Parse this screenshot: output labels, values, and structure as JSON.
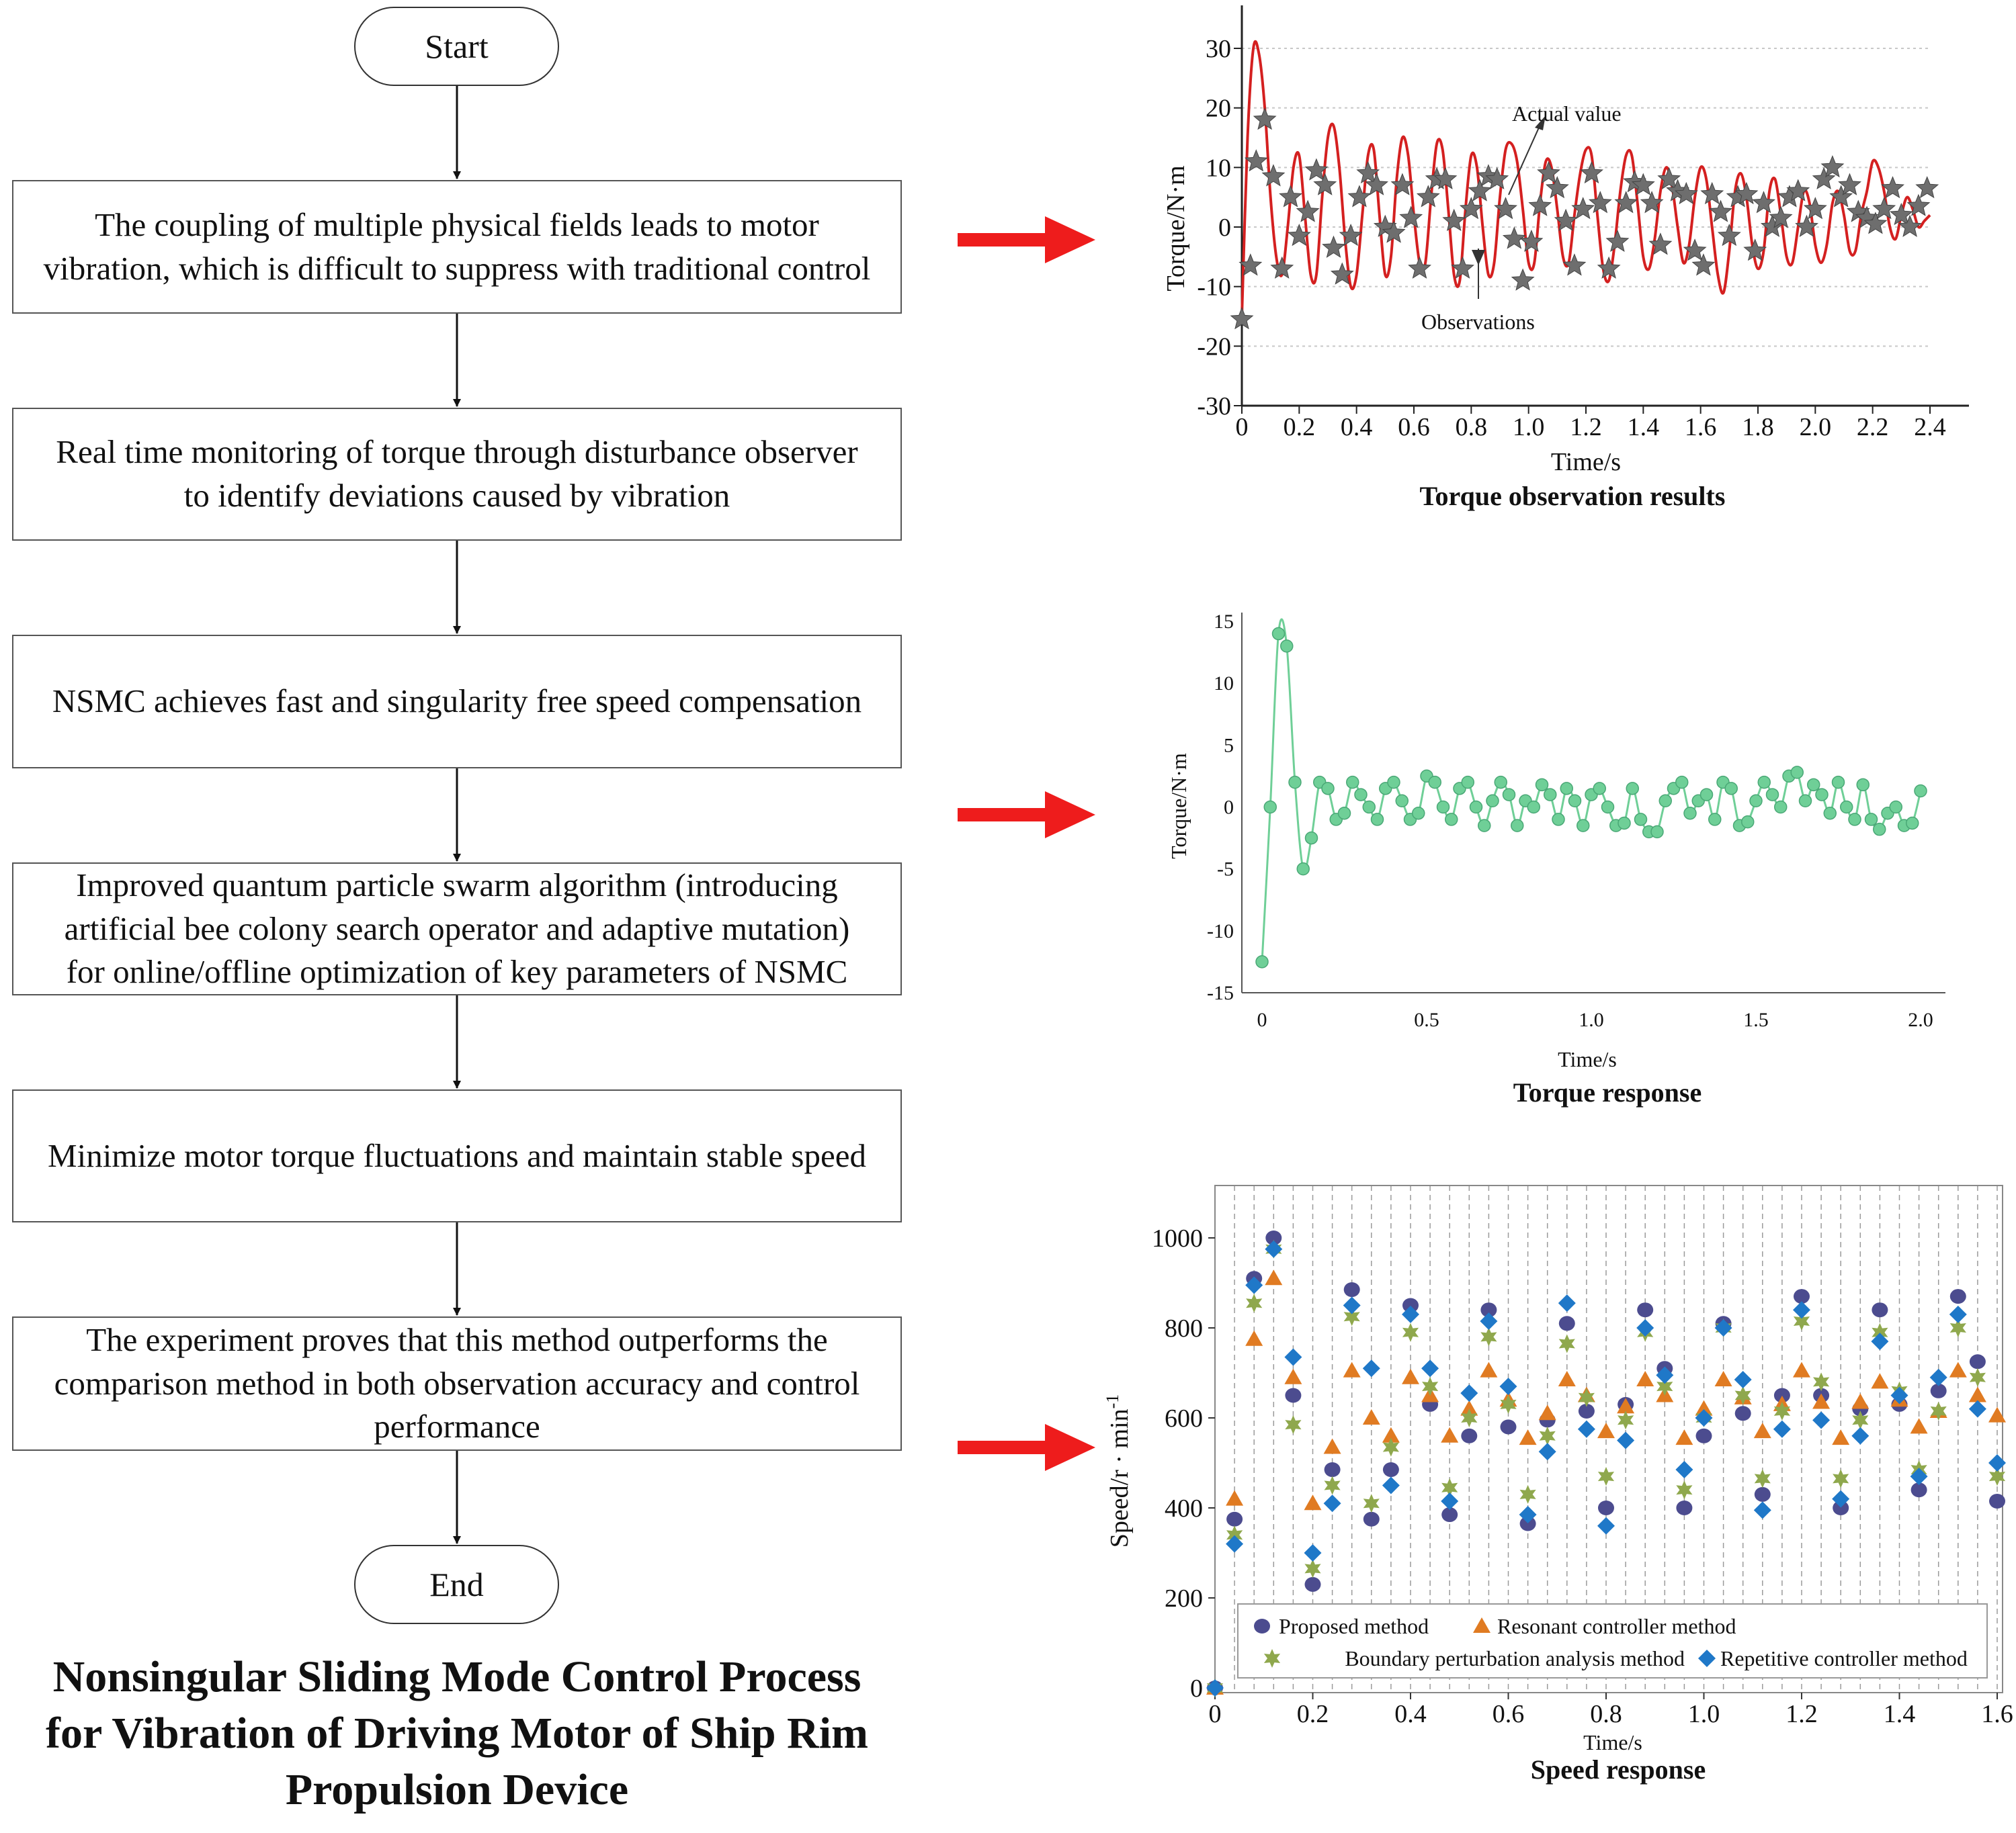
{
  "flowchart": {
    "start": "Start",
    "end": "End",
    "steps": [
      {
        "lines": [
          "The coupling of multiple physical fields leads to motor",
          "vibration, which is difficult to suppress with traditional control"
        ]
      },
      {
        "lines": [
          "Real time monitoring of torque through disturbance observer",
          "to identify deviations caused by vibration"
        ]
      },
      {
        "lines": [
          "NSMC achieves fast and singularity free speed compensation"
        ]
      },
      {
        "lines": [
          "Improved quantum particle swarm algorithm (introducing",
          "artificial bee colony search operator and adaptive mutation)",
          "for online/offline optimization of key parameters of NSMC"
        ]
      },
      {
        "lines": [
          "Minimize motor torque fluctuations and maintain stable speed"
        ]
      },
      {
        "lines": [
          "The experiment proves that this method outperforms the",
          "comparison method in both observation accuracy and control",
          "performance"
        ]
      }
    ],
    "title_lines": [
      "Nonsingular Sliding Mode Control Process",
      "for Vibration of Driving Motor of Ship Rim",
      "Propulsion Device"
    ]
  },
  "colors": {
    "pointer_arrow": "#ee1c1c",
    "actual_line": "#d42020",
    "observation_star": "#6e6e6e",
    "torque_response": "#6fcf97",
    "proposed": "#4c4c8f",
    "resonant": "#e07b22",
    "boundary": "#8fa84d",
    "repetitive": "#1f78c8"
  },
  "chart_data": [
    {
      "type": "line",
      "title": "Torque observation results",
      "xlabel": "Time/s",
      "ylabel": "Torque/N·m",
      "xlim": [
        0,
        2.4
      ],
      "ylim": [
        -30,
        30
      ],
      "x_ticks": [
        "0",
        "0.2",
        "0.4",
        "0.6",
        "0.8",
        "1.0",
        "1.2",
        "1.4",
        "1.6",
        "1.8",
        "2.0",
        "2.2",
        "2.4"
      ],
      "y_ticks": [
        "30",
        "20",
        "10",
        "0",
        "-10",
        "-20",
        "-30"
      ],
      "grid": "horizontal dotted",
      "annotations": [
        "Actual value",
        "Observations"
      ],
      "series": [
        {
          "name": "Actual value",
          "style": "line",
          "x": [
            0,
            0.02,
            0.04,
            0.06,
            0.08,
            0.1,
            0.12,
            0.14,
            0.16,
            0.18,
            0.2,
            0.22,
            0.24,
            0.26,
            0.28,
            0.3,
            0.32,
            0.34,
            0.36,
            0.38,
            0.4,
            0.42,
            0.44,
            0.46,
            0.48,
            0.5,
            0.52,
            0.54,
            0.56,
            0.58,
            0.6,
            0.62,
            0.64,
            0.66,
            0.68,
            0.7,
            0.72,
            0.74,
            0.76,
            0.78,
            0.8,
            0.82,
            0.84,
            0.86,
            0.88,
            0.9,
            0.92,
            0.94,
            0.96,
            0.98,
            1.0,
            1.02,
            1.04,
            1.06,
            1.08,
            1.1,
            1.12,
            1.14,
            1.16,
            1.18,
            1.2,
            1.22,
            1.24,
            1.26,
            1.28,
            1.3,
            1.32,
            1.34,
            1.36,
            1.38,
            1.4,
            1.42,
            1.44,
            1.46,
            1.48,
            1.5,
            1.52,
            1.54,
            1.56,
            1.58,
            1.6,
            1.62,
            1.64,
            1.66,
            1.68,
            1.7,
            1.72,
            1.74,
            1.76,
            1.78,
            1.8,
            1.82,
            1.84,
            1.86,
            1.88,
            1.9,
            1.92,
            1.94,
            1.96,
            1.98,
            2.0,
            2.02,
            2.04,
            2.06,
            2.08,
            2.1,
            2.12,
            2.14,
            2.16,
            2.18,
            2.2,
            2.22,
            2.24,
            2.26,
            2.28,
            2.3,
            2.32,
            2.34,
            2.36,
            2.38,
            2.4
          ],
          "y": [
            -15,
            15,
            30,
            29,
            20,
            5,
            -5,
            -8,
            0,
            10,
            12,
            2,
            -8,
            -8,
            5,
            15,
            17,
            10,
            -2,
            -10,
            -8,
            2,
            12,
            13,
            2,
            -8,
            -5,
            8,
            15,
            12,
            2,
            -6,
            -6,
            5,
            14,
            13,
            3,
            -8,
            -9,
            3,
            12,
            10,
            0,
            -8,
            -6,
            5,
            13,
            14,
            11,
            3,
            -6,
            -6,
            4,
            11,
            10,
            3,
            -5,
            -6,
            2,
            9,
            13,
            12,
            2,
            -7,
            -9,
            -3,
            6,
            12,
            12,
            4,
            -5,
            -7,
            -2,
            6,
            10,
            7,
            0,
            -6,
            -3,
            5,
            10,
            8,
            0,
            -8,
            -11,
            -4,
            6,
            9,
            5,
            -3,
            -7,
            -4,
            6,
            8,
            2,
            -5,
            -6,
            0,
            6,
            4,
            -3,
            -6,
            -3,
            4,
            6,
            2,
            -4,
            -4,
            2,
            6,
            11,
            10,
            6,
            0,
            -2,
            2,
            5,
            3,
            0,
            1,
            2
          ]
        },
        {
          "name": "Observations",
          "style": "star-marker",
          "x": [
            0,
            0.03,
            0.05,
            0.08,
            0.11,
            0.14,
            0.17,
            0.2,
            0.23,
            0.26,
            0.29,
            0.32,
            0.35,
            0.38,
            0.41,
            0.44,
            0.47,
            0.5,
            0.53,
            0.56,
            0.59,
            0.62,
            0.65,
            0.68,
            0.71,
            0.74,
            0.77,
            0.8,
            0.83,
            0.86,
            0.89,
            0.92,
            0.95,
            0.98,
            1.01,
            1.04,
            1.07,
            1.1,
            1.13,
            1.16,
            1.19,
            1.22,
            1.25,
            1.28,
            1.31,
            1.34,
            1.37,
            1.4,
            1.43,
            1.46,
            1.49,
            1.52,
            1.55,
            1.58,
            1.61,
            1.64,
            1.67,
            1.7,
            1.73,
            1.76,
            1.79,
            1.82,
            1.85,
            1.88,
            1.91,
            1.94,
            1.97,
            2.0,
            2.03,
            2.06,
            2.09,
            2.12,
            2.15,
            2.18,
            2.21,
            2.24,
            2.27,
            2.3,
            2.33,
            2.36,
            2.39
          ],
          "y": [
            -15.5,
            -6.5,
            11,
            18,
            8.5,
            -7,
            5,
            -1.5,
            2.5,
            9.5,
            7,
            -3.5,
            -8,
            -1.5,
            5,
            9,
            7,
            0,
            -1,
            7,
            1.5,
            -7,
            5,
            8,
            8,
            1,
            -7,
            3,
            6,
            8.5,
            8,
            3,
            -2,
            -9,
            -2.5,
            3.5,
            9,
            6.5,
            1,
            -6.5,
            3,
            9,
            4,
            -7,
            -2.5,
            4,
            7.5,
            7,
            4,
            -3,
            8,
            6,
            5.5,
            -4,
            -6.5,
            5.5,
            2.5,
            -1.5,
            5,
            5.5,
            -4,
            4,
            0,
            1.5,
            5,
            6,
            0,
            3,
            8,
            10,
            5,
            7,
            2.5,
            1.5,
            0.5,
            3,
            6.5,
            2,
            0,
            3.5,
            6.5
          ]
        }
      ]
    },
    {
      "type": "line",
      "title": "Torque response",
      "xlabel": "Time/s",
      "ylabel": "Torque/N·m",
      "xlim": [
        0,
        2.0
      ],
      "ylim": [
        -15,
        15
      ],
      "x_ticks": [
        "0",
        "0.5",
        "1.0",
        "1.5",
        "2.0"
      ],
      "y_ticks": [
        "15",
        "10",
        "5",
        "0",
        "-5",
        "-10",
        "-15"
      ],
      "series": [
        {
          "name": "",
          "style": "line-with-circles",
          "x": [
            0,
            0.025,
            0.05,
            0.075,
            0.1,
            0.125,
            0.15,
            0.175,
            0.2,
            0.225,
            0.25,
            0.275,
            0.3,
            0.325,
            0.35,
            0.375,
            0.4,
            0.425,
            0.45,
            0.475,
            0.5,
            0.525,
            0.55,
            0.575,
            0.6,
            0.625,
            0.65,
            0.675,
            0.7,
            0.725,
            0.75,
            0.775,
            0.8,
            0.825,
            0.85,
            0.875,
            0.9,
            0.925,
            0.95,
            0.975,
            1.0,
            1.025,
            1.05,
            1.075,
            1.1,
            1.125,
            1.15,
            1.175,
            1.2,
            1.225,
            1.25,
            1.275,
            1.3,
            1.325,
            1.35,
            1.375,
            1.4,
            1.425,
            1.45,
            1.475,
            1.5,
            1.525,
            1.55,
            1.575,
            1.6,
            1.625,
            1.65,
            1.675,
            1.7,
            1.725,
            1.75,
            1.775,
            1.8,
            1.825,
            1.85,
            1.875,
            1.9,
            1.925,
            1.95,
            1.975,
            2.0
          ],
          "y": [
            -12.5,
            0,
            14,
            13,
            2,
            -5,
            -2.5,
            2,
            1.5,
            -1,
            -0.5,
            2,
            1,
            0,
            -1,
            1.5,
            2,
            0.5,
            -1,
            -0.5,
            2.5,
            2,
            0,
            -1,
            1.5,
            2,
            0,
            -1.5,
            0.5,
            2,
            1,
            -1.5,
            0.5,
            0,
            1.8,
            1,
            -1,
            1.5,
            0.5,
            -1.5,
            1,
            1.5,
            0,
            -1.5,
            -1.3,
            1.5,
            -1,
            -2,
            -2,
            0.5,
            1.5,
            2,
            -0.5,
            0.5,
            1,
            -1,
            2,
            1.5,
            -1.5,
            -1.2,
            0.5,
            2,
            1,
            0,
            2.5,
            2.8,
            0.5,
            1.8,
            1,
            -0.5,
            2,
            0,
            -1,
            1.8,
            -1,
            -1.8,
            -0.5,
            0,
            -1.5,
            -1.3,
            1.3
          ]
        }
      ]
    },
    {
      "type": "scatter",
      "title": "Speed response",
      "xlabel": "Time/s",
      "ylabel": "Speed/r · min",
      "ylabel_superscript": "-1",
      "xlim": [
        0,
        1.6
      ],
      "ylim": [
        0,
        1000
      ],
      "x_ticks": [
        "0",
        "0.2",
        "0.4",
        "0.6",
        "0.8",
        "1.0",
        "1.2",
        "1.4",
        "1.6"
      ],
      "y_ticks": [
        "1000",
        "800",
        "600",
        "400",
        "200",
        "0"
      ],
      "grid": "vertical dashed",
      "legend_position": "bottom",
      "x": [
        0,
        0.04,
        0.08,
        0.12,
        0.16,
        0.2,
        0.24,
        0.28,
        0.32,
        0.36,
        0.4,
        0.44,
        0.48,
        0.52,
        0.56,
        0.6,
        0.64,
        0.68,
        0.72,
        0.76,
        0.8,
        0.84,
        0.88,
        0.92,
        0.96,
        1.0,
        1.04,
        1.08,
        1.12,
        1.16,
        1.2,
        1.24,
        1.28,
        1.32,
        1.36,
        1.4,
        1.44,
        1.48,
        1.52,
        1.56,
        1.6
      ],
      "series": [
        {
          "name": "Proposed method",
          "marker": "circle",
          "values": [
            0,
            375,
            910,
            1000,
            650,
            230,
            485,
            885,
            375,
            485,
            850,
            630,
            385,
            560,
            840,
            580,
            365,
            595,
            810,
            615,
            400,
            630,
            840,
            710,
            400,
            560,
            810,
            610,
            430,
            650,
            870,
            650,
            400,
            620,
            840,
            630,
            440,
            660,
            870,
            725,
            415
          ]
        },
        {
          "name": "Resonant controller method",
          "marker": "triangle",
          "values": [
            0,
            420,
            775,
            910,
            690,
            410,
            535,
            705,
            600,
            560,
            690,
            650,
            560,
            620,
            705,
            640,
            555,
            610,
            685,
            650,
            570,
            625,
            685,
            650,
            555,
            620,
            685,
            645,
            570,
            630,
            705,
            635,
            555,
            635,
            680,
            640,
            580,
            615,
            705,
            650,
            605
          ]
        },
        {
          "name": "Boundary perturbation analysis method",
          "marker": "star",
          "values": [
            0,
            340,
            855,
            975,
            585,
            265,
            450,
            825,
            410,
            535,
            790,
            670,
            445,
            600,
            780,
            630,
            430,
            560,
            765,
            645,
            470,
            595,
            790,
            670,
            440,
            600,
            800,
            650,
            465,
            615,
            815,
            680,
            465,
            595,
            790,
            660,
            485,
            615,
            800,
            690,
            470
          ]
        },
        {
          "name": "Repetitive controller method",
          "marker": "diamond",
          "values": [
            0,
            320,
            895,
            975,
            735,
            300,
            410,
            850,
            710,
            450,
            830,
            710,
            415,
            655,
            815,
            670,
            385,
            525,
            855,
            575,
            360,
            550,
            800,
            695,
            485,
            600,
            800,
            685,
            395,
            575,
            840,
            595,
            420,
            560,
            770,
            650,
            470,
            690,
            830,
            620,
            500
          ]
        }
      ]
    }
  ]
}
